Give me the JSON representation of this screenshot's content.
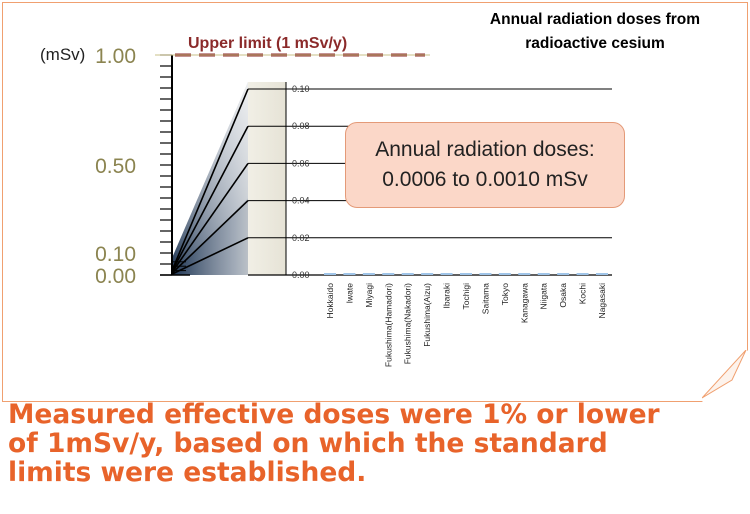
{
  "title": {
    "line1": "Annual radiation doses from",
    "line2": "radioactive cesium"
  },
  "callout": {
    "line1": "Annual radiation doses:",
    "line2": "0.0006 to 0.0010 mSv"
  },
  "conclusion": {
    "line1": "Measured effective doses were 1% or lower",
    "line2": "of 1mSv/y, based on which the standard",
    "line3": "limits were established."
  },
  "colors": {
    "frame": "#f0a070",
    "conclusion": "#e8632a",
    "limit_line": "#8b2a2a",
    "big_axis_labels": "#8b8450",
    "callout_fill": "#fbd7c8",
    "bar_dashes": "#9fc4e8"
  },
  "chart_data": [
    {
      "type": "line",
      "title": "",
      "ylabel": "(mSv)",
      "ylim": [
        0,
        1.0
      ],
      "yticks": [
        "0.00",
        "0.10",
        "0.50",
        "1.00"
      ],
      "reference_lines": [
        {
          "label": "Upper limit (1 mSv/y)",
          "value": 1.0
        }
      ]
    },
    {
      "type": "bar",
      "title": "",
      "ylim": [
        0,
        0.1
      ],
      "yticks": [
        "0.00",
        "0.02",
        "0.04",
        "0.06",
        "0.08",
        "0.10"
      ],
      "categories": [
        "Hokkaido",
        "Iwate",
        "Miyagi",
        "Fukushima(Hamadori)",
        "Fukushima(Nakadori)",
        "Fukushima(Aizu)",
        "Ibaraki",
        "Tochigi",
        "Saitama",
        "Tokyo",
        "Kanagawa",
        "Niigata",
        "Osaka",
        "Kochi",
        "Nagasaki"
      ],
      "values": [
        0.0008,
        0.0008,
        0.0009,
        0.001,
        0.001,
        0.0008,
        0.0008,
        0.0007,
        0.0008,
        0.0008,
        0.0008,
        0.0006,
        0.0007,
        0.0007,
        0.0006
      ],
      "grid": true
    }
  ]
}
